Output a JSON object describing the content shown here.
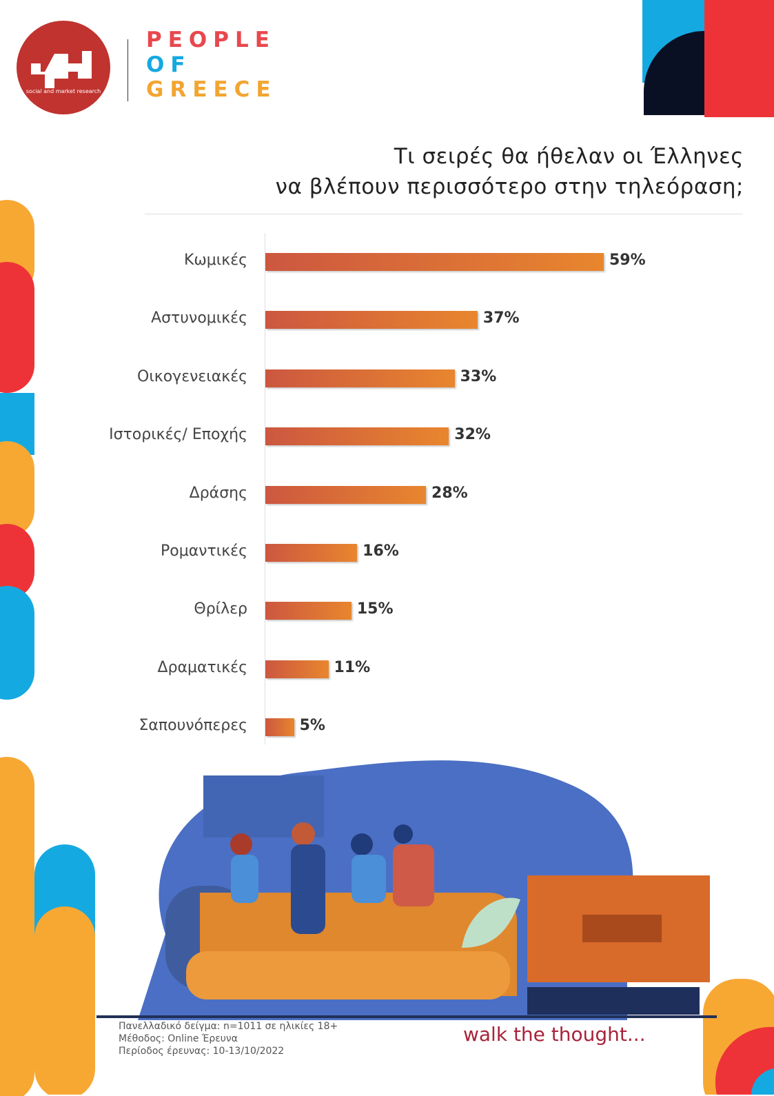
{
  "logo": {
    "sub_text": "social and market research",
    "brand_lines": [
      "PEOPLE",
      "OF",
      "GREECE"
    ]
  },
  "title_lines": [
    "Τι σειρές θα ήθελαν οι Έλληνες",
    "να βλέπουν περισσότερο στην τηλεόραση;"
  ],
  "chart_data": {
    "type": "bar",
    "orientation": "horizontal",
    "title": "Τι σειρές θα ήθελαν οι Έλληνες να βλέπουν περισσότερο στην τηλεόραση;",
    "categories": [
      "Κωμικές",
      "Αστυνομικές",
      "Οικογενειακές",
      "Ιστορικές/ Εποχής",
      "Δράσης",
      "Ρομαντικές",
      "Θρίλερ",
      "Δραματικές",
      "Σαπουνόπερες"
    ],
    "values": [
      59,
      37,
      33,
      32,
      28,
      16,
      15,
      11,
      5
    ],
    "labels": [
      "59%",
      "37%",
      "33%",
      "32%",
      "28%",
      "16%",
      "15%",
      "11%",
      "5%"
    ],
    "unit": "%",
    "xlim": [
      0,
      60
    ],
    "grid": false,
    "colors": {
      "bar_start": "#cc5740",
      "bar_end": "#e8862e"
    }
  },
  "footer": {
    "lines": [
      "Πανελλαδικό δείγμα: n=1011 σε ηλικίες 18+",
      "Μέθοδος: Online Έρευνα",
      "Περίοδος έρευνας: 10-13/10/2022"
    ],
    "tagline": "walk the thought..."
  }
}
